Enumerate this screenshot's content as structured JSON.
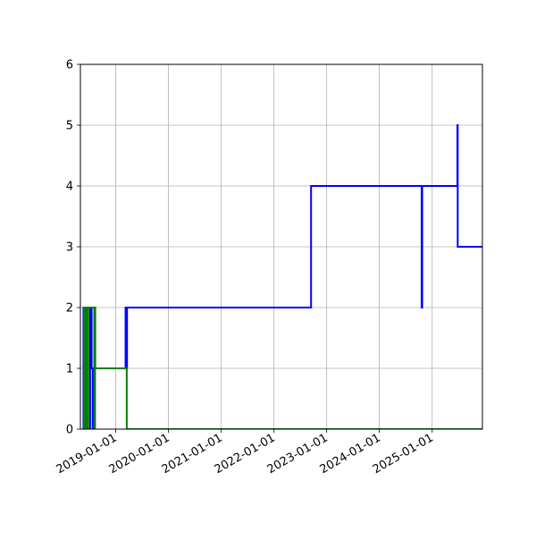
{
  "chart_data": {
    "type": "line",
    "title": "",
    "xlabel": "",
    "ylabel": "",
    "x_axis_type": "date",
    "xlim": [
      "2018-05-01",
      "2025-12-15"
    ],
    "ylim": [
      0,
      6
    ],
    "grid": true,
    "legend": "none",
    "xticks": [
      "2019-01-01",
      "2020-01-01",
      "2021-01-01",
      "2022-01-01",
      "2023-01-01",
      "2024-01-01",
      "2025-01-01"
    ],
    "xtick_rotation_deg": 30,
    "yticks": [
      0,
      1,
      2,
      3,
      4,
      5,
      6
    ],
    "series": [
      {
        "color": "#0000ff",
        "drawstyle": "steps-post",
        "points": [
          [
            "2018-05-20",
            0
          ],
          [
            "2018-05-22",
            2
          ],
          [
            "2018-05-28",
            0
          ],
          [
            "2018-06-05",
            2
          ],
          [
            "2018-06-12",
            0
          ],
          [
            "2018-07-01",
            0
          ],
          [
            "2018-07-07",
            2
          ],
          [
            "2018-07-18",
            1
          ],
          [
            "2018-07-25",
            0
          ],
          [
            "2018-08-10",
            1
          ],
          [
            "2019-03-10",
            2
          ],
          [
            "2019-03-15",
            1
          ],
          [
            "2019-03-20",
            2
          ],
          [
            "2022-09-15",
            4
          ],
          [
            "2024-10-20",
            2
          ],
          [
            "2024-10-24",
            4
          ],
          [
            "2025-06-25",
            5
          ],
          [
            "2025-06-27",
            3
          ],
          [
            "2025-12-15",
            3
          ]
        ]
      },
      {
        "color": "#008000",
        "drawstyle": "steps-post",
        "points": [
          [
            "2018-05-20",
            0
          ],
          [
            "2018-05-25",
            2
          ],
          [
            "2018-06-01",
            0
          ],
          [
            "2018-06-05",
            2
          ],
          [
            "2018-06-10",
            0
          ],
          [
            "2018-06-15",
            2
          ],
          [
            "2018-06-20",
            0
          ],
          [
            "2018-06-24",
            2
          ],
          [
            "2018-08-05",
            0
          ],
          [
            "2018-08-08",
            2
          ],
          [
            "2018-08-12",
            1
          ],
          [
            "2019-03-10",
            1
          ],
          [
            "2019-03-18",
            0
          ],
          [
            "2025-12-15",
            0
          ]
        ]
      }
    ]
  }
}
